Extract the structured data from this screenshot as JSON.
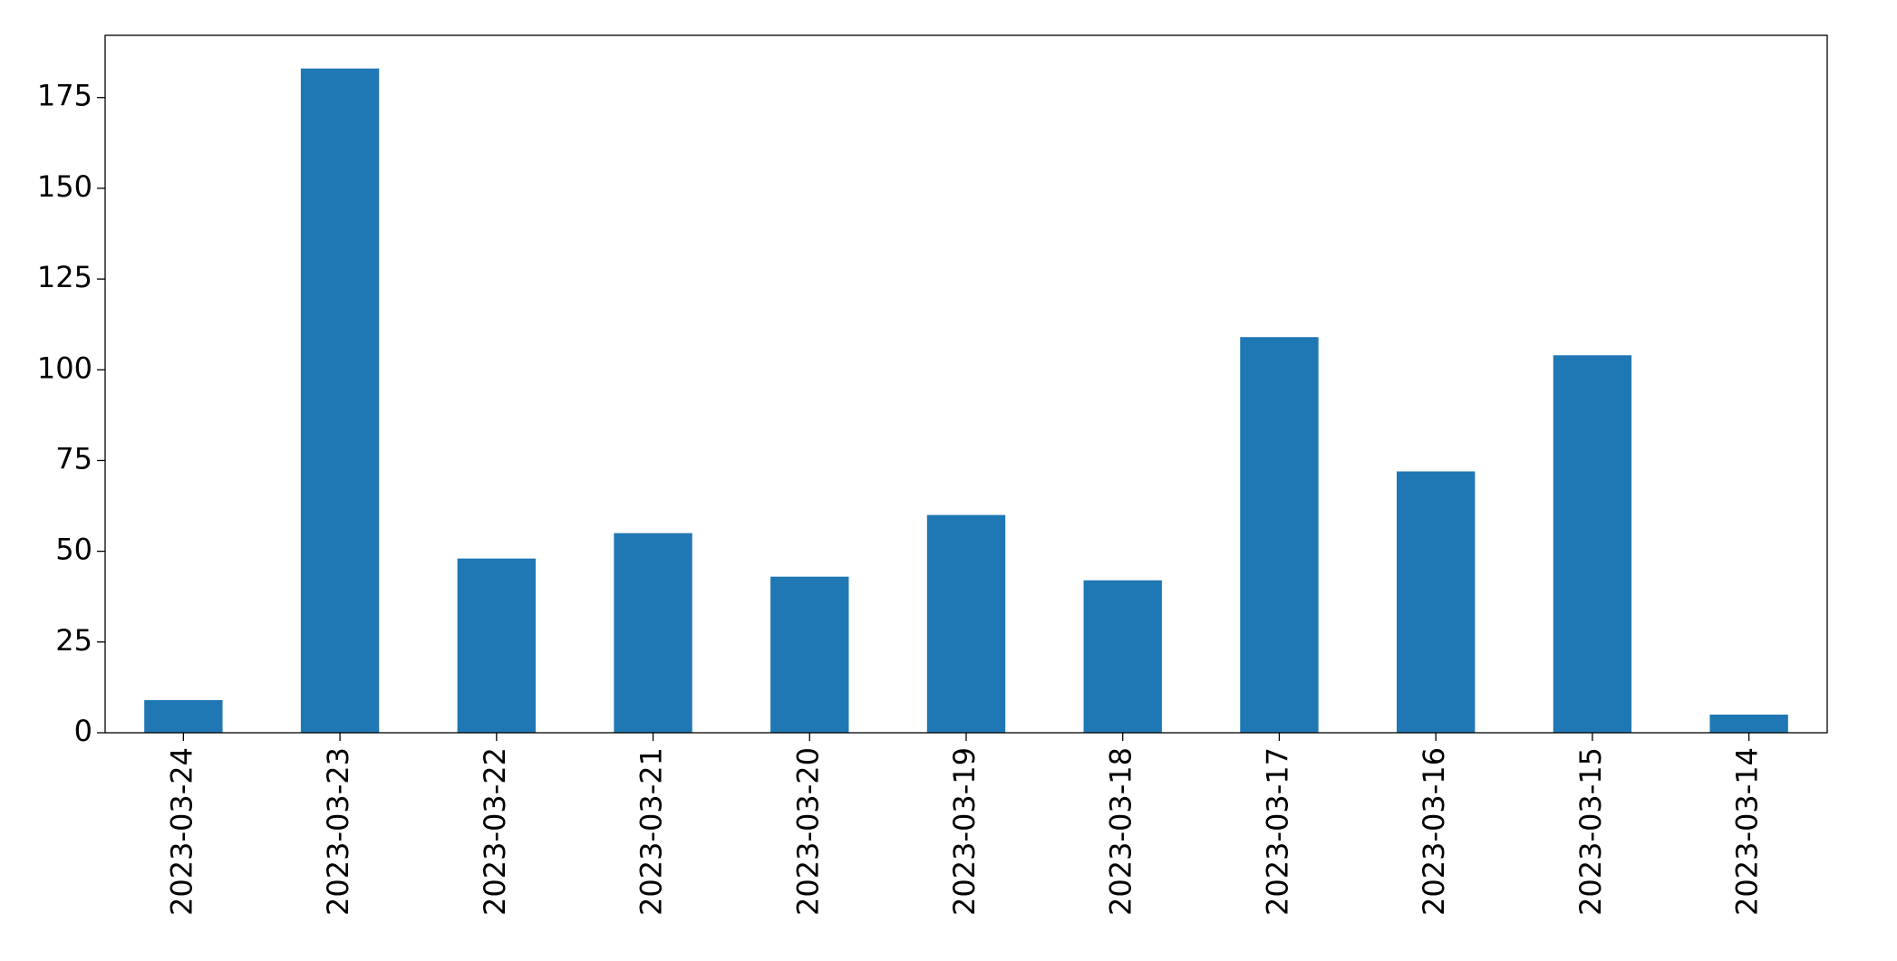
{
  "chart_data": {
    "type": "bar",
    "categories": [
      "2023-03-24",
      "2023-03-23",
      "2023-03-22",
      "2023-03-21",
      "2023-03-20",
      "2023-03-19",
      "2023-03-18",
      "2023-03-17",
      "2023-03-16",
      "2023-03-15",
      "2023-03-14"
    ],
    "values": [
      9,
      183,
      48,
      55,
      43,
      60,
      42,
      109,
      72,
      104,
      5
    ],
    "color": "#1f77b4",
    "ylim": [
      0,
      192.15
    ],
    "yticks": [
      0,
      25,
      50,
      75,
      100,
      125,
      150,
      175
    ],
    "grid": false
  }
}
